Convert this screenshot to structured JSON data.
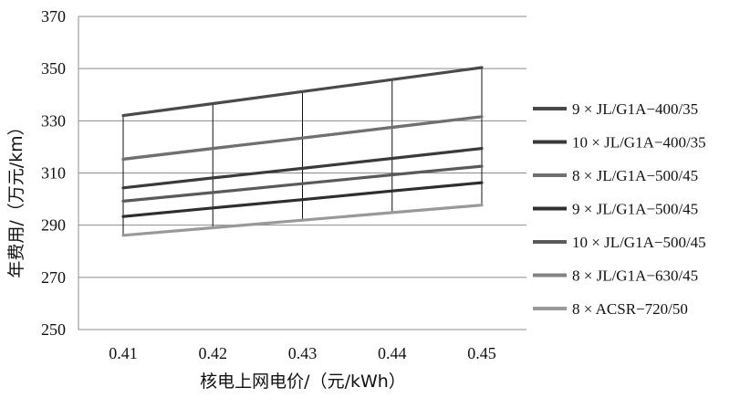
{
  "chart_data": {
    "type": "line",
    "xlabel": "核电上网电价/（元/kWh）",
    "ylabel": "年费用/（万元/km）",
    "x": [
      0.41,
      0.42,
      0.43,
      0.44,
      0.45
    ],
    "x_tick_labels": [
      "0.41",
      "0.42",
      "0.43",
      "0.44",
      "0.45"
    ],
    "ylim": [
      250,
      370
    ],
    "y_ticks": [
      250,
      270,
      290,
      310,
      330,
      350,
      370
    ],
    "grid": "horizontal",
    "legend_position": "right",
    "series": [
      {
        "name": "9 × JL/G1A−400/35",
        "color": "#4a4a4a",
        "values": [
          332,
          336.6,
          341.2,
          345.8,
          350.4
        ]
      },
      {
        "name": "10 × JL/G1A−400/35",
        "color": "#3a3a3a",
        "values": [
          304.3,
          308.1,
          311.8,
          315.6,
          319.4
        ]
      },
      {
        "name": "8 × JL/G1A−500/45",
        "color": "#707070",
        "values": [
          315.3,
          319.4,
          323.4,
          327.5,
          331.6
        ]
      },
      {
        "name": "9 × JL/G1A−500/45",
        "color": "#2e2e2e",
        "values": [
          293.3,
          296.6,
          299.8,
          303.1,
          306.3
        ]
      },
      {
        "name": "10 × JL/G1A−500/45",
        "color": "#5a5a5a",
        "values": [
          299.2,
          302.5,
          305.9,
          309.3,
          312.6
        ]
      },
      {
        "name": "8 × JL/G1A−630/45",
        "color": "#838383",
        "values": [
          315.3,
          319.4,
          323.4,
          327.5,
          331.6
        ]
      },
      {
        "name": "8 × ACSR−720/50",
        "color": "#999999",
        "values": [
          286.1,
          289,
          291.9,
          294.8,
          297.7
        ]
      }
    ],
    "drop_lines": {
      "x": [
        0.41,
        0.42,
        0.43,
        0.44,
        0.45
      ],
      "from_series": 0,
      "to_series": 6
    }
  }
}
